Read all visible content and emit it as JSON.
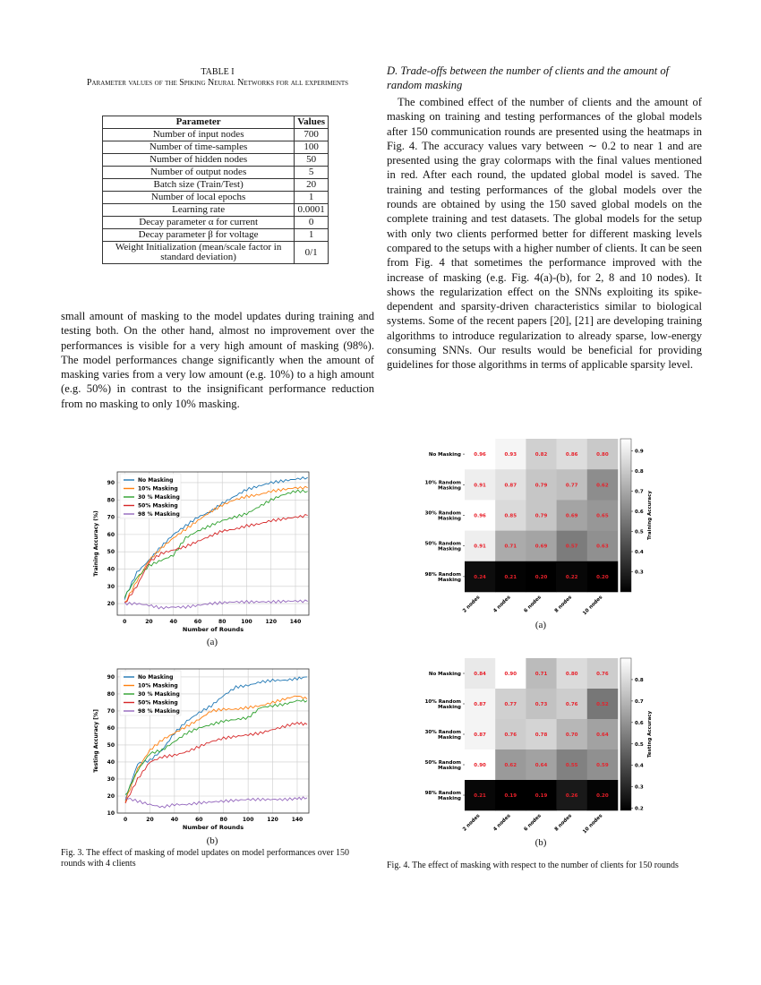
{
  "table": {
    "title": "TABLE I",
    "caption": "Parameter values of the Spiking Neural Networks for all experiments",
    "headers": [
      "Parameter",
      "Values"
    ],
    "rows": [
      [
        "Number of input nodes",
        "700"
      ],
      [
        "Number of time-samples",
        "100"
      ],
      [
        "Number of hidden nodes",
        "50"
      ],
      [
        "Number of output nodes",
        "5"
      ],
      [
        "Batch size (Train/Test)",
        "20"
      ],
      [
        "Number of local epochs",
        "1"
      ],
      [
        "Learning rate",
        "0.0001"
      ],
      [
        "Decay parameter α for current",
        "0"
      ],
      [
        "Decay parameter β for voltage",
        "1"
      ],
      [
        "Weight Initialization (mean/scale factor in standard deviation)",
        "0/1"
      ]
    ]
  },
  "left_text": "small amount of masking to the model updates during training and testing both. On the other hand, almost no improvement over the performances is visible for a very high amount of masking (98%). The model performances change significantly when the amount of masking varies from a very low amount (e.g. 10%) to a high amount (e.g. 50%) in contrast to the insignificant performance reduction from no masking to only 10% masking.",
  "section_heading": "D. Trade-offs between the number of clients and the amount of random masking",
  "right_text": "The combined effect of the number of clients and the amount of masking on training and testing performances of the global models after 150 communication rounds are presented using the heatmaps in Fig. 4. The accuracy values vary between ∼ 0.2 to near 1 and are presented using the gray colormaps with the final values mentioned in red. After each round, the updated global model is saved. The training and testing performances of the global models over the rounds are obtained by using the 150 saved global models on the complete training and test datasets. The global models for the setup with only two clients performed better for different masking levels compared to the setups with a higher number of clients. It can be seen from Fig. 4 that sometimes the performance improved with the increase of masking (e.g. Fig. 4(a)-(b), for 2, 8 and 10 nodes). It shows the regularization effect on the SNNs exploiting its spike-dependent and sparsity-driven characteristics similar to biological systems. Some of the recent papers [20], [21] are developing training algorithms to introduce regularization to already sparse, low-energy consuming SNNs. Our results would be beneficial for providing guidelines for those algorithms in terms of applicable sparsity level.",
  "fig3": {
    "sub_a": "(a)",
    "sub_b": "(b)",
    "caption": "Fig. 3.  The effect of masking of model updates on model performances over 150 rounds with 4 clients"
  },
  "fig4": {
    "sub_a": "(a)",
    "sub_b": "(b)",
    "caption": "Fig. 4.  The effect of masking with respect to the number of clients for 150 rounds"
  },
  "chart_data": [
    {
      "type": "line",
      "id": "fig3a",
      "xlabel": "Number of Rounds",
      "ylabel": "Training Accuracy (%)",
      "xlim": [
        -6,
        151
      ],
      "ylim": [
        13.3,
        96.2
      ],
      "xticks": [
        0,
        20,
        40,
        60,
        80,
        100,
        120,
        140
      ],
      "yticks": [
        20,
        30,
        40,
        50,
        60,
        70,
        80,
        90
      ],
      "grid": true,
      "legend": "top-left",
      "x": [
        0,
        10,
        20,
        30,
        40,
        50,
        60,
        70,
        80,
        90,
        100,
        110,
        120,
        130,
        140,
        150
      ],
      "series": [
        {
          "name": "No Masking",
          "color": "#1f77b4",
          "values": [
            23,
            38,
            45,
            53,
            60,
            65,
            70,
            73,
            78,
            82,
            86,
            88,
            90,
            91,
            92,
            93
          ]
        },
        {
          "name": "10% Masking",
          "color": "#ff7f0e",
          "values": [
            20,
            33,
            45,
            52,
            58,
            63,
            68,
            73,
            77,
            80,
            82,
            83,
            85,
            86,
            87,
            87
          ]
        },
        {
          "name": "30 % Masking",
          "color": "#2ca02c",
          "values": [
            24,
            35,
            42,
            45,
            48,
            58,
            62,
            65,
            68,
            70,
            72,
            76,
            80,
            83,
            85,
            85
          ]
        },
        {
          "name": "50% Masking",
          "color": "#d62728",
          "values": [
            20,
            30,
            44,
            49,
            51,
            53,
            56,
            59,
            62,
            63,
            65,
            66,
            68,
            69,
            70,
            71
          ]
        },
        {
          "name": "98 % Masking",
          "color": "#9467bd",
          "values": [
            20,
            20,
            19,
            17.5,
            18,
            18,
            19,
            20,
            20.5,
            21,
            21,
            21,
            21,
            21.3,
            21.5,
            21.3
          ]
        }
      ]
    },
    {
      "type": "line",
      "id": "fig3b",
      "xlabel": "Number of Rounds",
      "ylabel": "Testing Accuracy [%]",
      "xlim": [
        -6.6,
        149.5
      ],
      "ylim": [
        10,
        94.7
      ],
      "xticks": [
        0,
        20,
        40,
        60,
        80,
        100,
        120,
        140
      ],
      "yticks": [
        10,
        20,
        30,
        40,
        50,
        60,
        70,
        80,
        90
      ],
      "grid": true,
      "legend": "top-left",
      "x": [
        0,
        10,
        20,
        30,
        40,
        50,
        60,
        70,
        80,
        90,
        100,
        110,
        120,
        130,
        140,
        148
      ],
      "series": [
        {
          "name": "No Masking",
          "color": "#1f77b4",
          "values": [
            18,
            39,
            41,
            47,
            57,
            64,
            69,
            73,
            79,
            84,
            85,
            87,
            88,
            88,
            89,
            90
          ]
        },
        {
          "name": "10% Masking",
          "color": "#ff7f0e",
          "values": [
            17,
            36,
            47,
            53,
            57,
            61,
            65,
            70,
            71,
            71,
            72,
            73,
            75,
            77,
            79,
            77
          ]
        },
        {
          "name": "30 % Masking",
          "color": "#2ca02c",
          "values": [
            20,
            35,
            45,
            47,
            52,
            57,
            60,
            62,
            64,
            65,
            66,
            72,
            73,
            74,
            76,
            76
          ]
        },
        {
          "name": "50% Masking",
          "color": "#d62728",
          "values": [
            16,
            30,
            40,
            43,
            44,
            46,
            49,
            52,
            54,
            55,
            56,
            57,
            59,
            61,
            63,
            62
          ]
        },
        {
          "name": "98 % Masking",
          "color": "#9467bd",
          "values": [
            19,
            17,
            15,
            13.5,
            15,
            15,
            16,
            16.5,
            17,
            17.5,
            18,
            18,
            18,
            18,
            18.5,
            19
          ]
        }
      ]
    },
    {
      "type": "heatmap",
      "id": "fig4a",
      "colorbar_label": "Training Accuracy",
      "colormap": "gray",
      "value_color": "#e8202a",
      "vmin": 0.2,
      "vmax": 0.96,
      "colorbar_ticks": [
        0.3,
        0.4,
        0.5,
        0.6,
        0.7,
        0.8,
        0.9
      ],
      "rows": [
        "No Masking",
        "10% Random Masking",
        "30% Random Masking",
        "50% Random Masking",
        "98% Random Masking"
      ],
      "columns": [
        "2 nodes",
        "4 nodes",
        "6 nodes",
        "8 nodes",
        "10 nodes"
      ],
      "values": [
        [
          0.96,
          0.93,
          0.82,
          0.86,
          0.8
        ],
        [
          0.91,
          0.87,
          0.79,
          0.77,
          0.62
        ],
        [
          0.96,
          0.85,
          0.79,
          0.69,
          0.65
        ],
        [
          0.91,
          0.71,
          0.69,
          0.57,
          0.63
        ],
        [
          0.24,
          0.21,
          0.2,
          0.22,
          0.2
        ]
      ]
    },
    {
      "type": "heatmap",
      "id": "fig4b",
      "colorbar_label": "Testing Accuracy",
      "colormap": "gray",
      "value_color": "#e8202a",
      "vmin": 0.19,
      "vmax": 0.9,
      "colorbar_ticks": [
        0.2,
        0.3,
        0.4,
        0.5,
        0.6,
        0.7,
        0.8
      ],
      "rows": [
        "No Masking",
        "10% Random Masking",
        "30% Random Masking",
        "50% Random Masking",
        "98% Random Masking"
      ],
      "columns": [
        "2 nodes",
        "4 nodes",
        "6 nodes",
        "8 nodes",
        "10 nodes"
      ],
      "values": [
        [
          0.84,
          0.9,
          0.71,
          0.8,
          0.76
        ],
        [
          0.87,
          0.77,
          0.73,
          0.76,
          0.52
        ],
        [
          0.87,
          0.76,
          0.78,
          0.7,
          0.64
        ],
        [
          0.9,
          0.62,
          0.64,
          0.55,
          0.59
        ],
        [
          0.21,
          0.19,
          0.19,
          0.26,
          0.2
        ]
      ]
    }
  ]
}
